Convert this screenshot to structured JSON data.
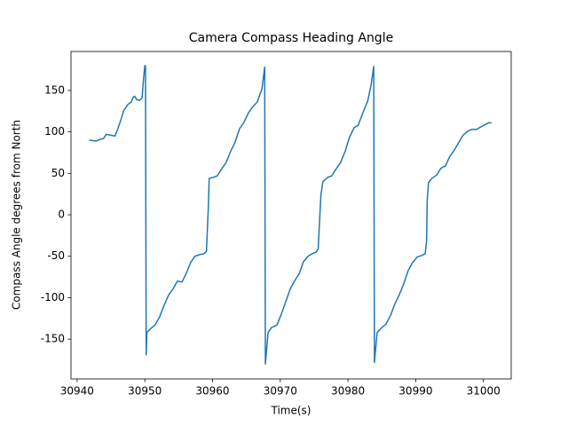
{
  "chart_data": {
    "type": "line",
    "title": "Camera Compass Heading Angle",
    "x_label": "Time(s)",
    "y_label": "Compass Angle degrees from North",
    "color": "#1f77b4",
    "x": [
      30941.8,
      30942.8,
      30943.4,
      30943.9,
      30944.3,
      30945.0,
      30945.6,
      30946.2,
      30946.6,
      30946.9,
      30947.5,
      30948.0,
      30948.3,
      30948.5,
      30948.8,
      30949.2,
      30949.6,
      30949.8,
      30950.0,
      30950.1,
      30950.2,
      30950.3,
      30950.9,
      30951.5,
      30952.2,
      30952.8,
      30953.5,
      30954.2,
      30954.8,
      30955.5,
      30956.1,
      30956.8,
      30957.4,
      30958.1,
      30958.7,
      30959.1,
      30959.4,
      30959.5,
      30960.1,
      30960.7,
      30961.4,
      30962.0,
      30962.7,
      30963.3,
      30964.0,
      30964.6,
      30965.3,
      30965.9,
      30966.6,
      30967.3,
      30967.7,
      30967.8,
      30968.2,
      30968.7,
      30969.5,
      30970.1,
      30970.8,
      30971.5,
      30972.1,
      30972.8,
      30973.4,
      30974.1,
      30974.7,
      30975.3,
      30975.6,
      30976.0,
      30976.3,
      30977.0,
      30977.6,
      30978.3,
      30978.9,
      30979.6,
      30980.2,
      30980.9,
      30981.5,
      30982.2,
      30982.9,
      30983.4,
      30983.8,
      30983.9,
      30984.3,
      30985.0,
      30985.6,
      30986.3,
      30986.9,
      30987.6,
      30988.2,
      30988.9,
      30989.5,
      30990.2,
      30990.9,
      30991.4,
      30991.6,
      30991.7,
      30991.9,
      30992.4,
      30993.1,
      30993.7,
      30994.4,
      30995.0,
      30995.7,
      30996.4,
      30997.0,
      30997.7,
      30998.3,
      30999.0,
      30999.6,
      31000.3,
      31000.8,
      31001.2
    ],
    "values": [
      90,
      89,
      91,
      92,
      97,
      96,
      95,
      108,
      118,
      126,
      133,
      136,
      142,
      143,
      139,
      138,
      141,
      163,
      180,
      179,
      -169,
      -142,
      -137,
      -133,
      -123,
      -110,
      -97,
      -89,
      -80,
      -81,
      -71,
      -57,
      -50,
      -48,
      -47,
      -44,
      13,
      44,
      45,
      47,
      56,
      63,
      77,
      87,
      104,
      111,
      123,
      130,
      136,
      152,
      178,
      -180,
      -142,
      -136,
      -133,
      -121,
      -105,
      -89,
      -80,
      -71,
      -57,
      -50,
      -47,
      -45,
      -41,
      24,
      40,
      45,
      47,
      56,
      63,
      77,
      93,
      105,
      108,
      123,
      137,
      156,
      179,
      -178,
      -142,
      -136,
      -132,
      -121,
      -108,
      -96,
      -84,
      -67,
      -58,
      -51,
      -49,
      -47,
      -32,
      18,
      39,
      44,
      48,
      56,
      59,
      70,
      78,
      88,
      96,
      101,
      103,
      103,
      106,
      109,
      111,
      111
    ],
    "xlim": [
      30939.1,
      31004.1
    ],
    "xticks": [
      30940,
      30950,
      30960,
      30970,
      30980,
      30990,
      31000
    ],
    "ylim": [
      -198,
      197
    ],
    "yticks": [
      -150,
      -100,
      -50,
      0,
      50,
      100,
      150
    ]
  }
}
